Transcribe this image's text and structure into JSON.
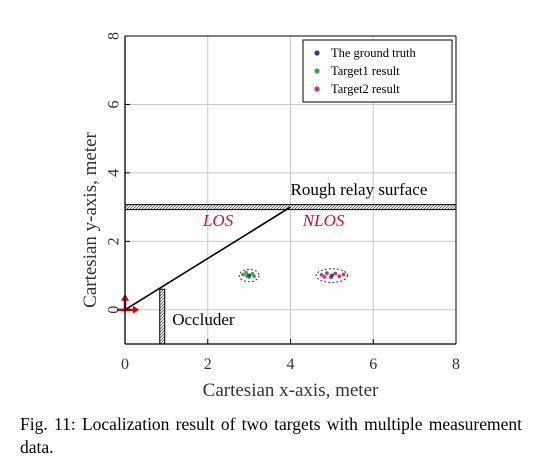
{
  "chart_data": {
    "type": "scatter",
    "xlabel": "Cartesian x-axis, meter",
    "ylabel": "Cartesian y-axis, meter",
    "xlim": [
      0,
      8
    ],
    "ylim": [
      -1,
      8
    ],
    "xticks": [
      0,
      2,
      4,
      6,
      8
    ],
    "yticks": [
      0,
      2,
      4,
      6,
      8
    ],
    "grid": true,
    "legend_position": "top-right",
    "series": [
      {
        "name": "The ground truth",
        "color": "#1f3f99",
        "points": [
          [
            3.0,
            1.0
          ],
          [
            5.0,
            1.0
          ]
        ]
      },
      {
        "name": "Target1 result",
        "color": "#3aa83a",
        "points": [
          [
            2.85,
            1.03
          ],
          [
            2.93,
            1.08
          ],
          [
            3.0,
            0.96
          ],
          [
            3.08,
            1.05
          ],
          [
            2.95,
            0.99
          ],
          [
            3.12,
            0.98
          ]
        ]
      },
      {
        "name": "Target2 result",
        "color": "#d0308a",
        "points": [
          [
            4.75,
            1.02
          ],
          [
            4.88,
            1.07
          ],
          [
            4.98,
            0.95
          ],
          [
            5.08,
            1.06
          ],
          [
            5.18,
            0.98
          ],
          [
            5.28,
            1.03
          ],
          [
            4.82,
            0.96
          ]
        ]
      }
    ],
    "annotations": {
      "surface_label": "Rough relay surface",
      "los_label": "LOS",
      "nlos_label": "NLOS",
      "occluder_label": "Occluder"
    },
    "scene": {
      "relay_surface_y": 3.0,
      "los_line": [
        [
          0,
          0
        ],
        [
          4.0,
          3.0
        ]
      ],
      "occluder_x": 0.9,
      "occluder_y_range": [
        -1,
        0.6
      ],
      "sensor": [
        0,
        0
      ],
      "target_regions": [
        {
          "cx": 3.0,
          "cy": 1.0,
          "rx": 0.24,
          "ry": 0.18
        },
        {
          "cx": 5.0,
          "cy": 1.0,
          "rx": 0.38,
          "ry": 0.2
        }
      ]
    },
    "colors": {
      "annotation_red": "#c8102e",
      "arrow_red": "#d40000",
      "grid": "#c8c8c8"
    }
  },
  "caption": {
    "label": "Fig. 11:",
    "text": "Localization result of two targets with multiple measurement data."
  }
}
